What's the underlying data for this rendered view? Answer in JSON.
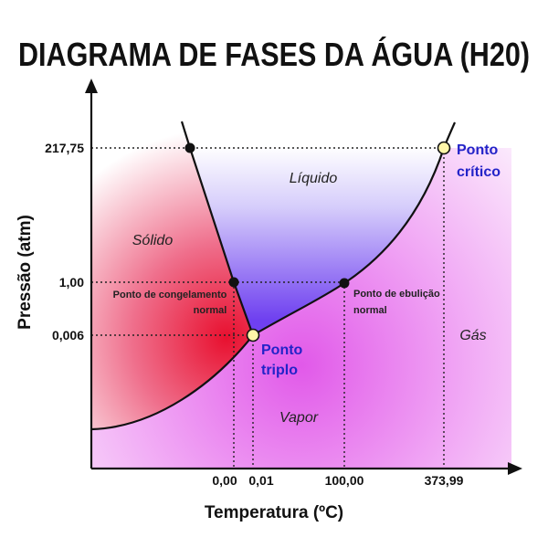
{
  "title": "DIAGRAMA DE FASES DA ÁGUA (H20)",
  "axes": {
    "y_label": "Pressão (atm)",
    "x_label": "Temperatura (ºC)",
    "y_ticks": [
      "217,75",
      "1,00",
      "0,006"
    ],
    "x_ticks": [
      "0,00",
      "0,01",
      "100,00",
      "373,99"
    ]
  },
  "regions": {
    "solid": "Sólido",
    "liquid": "Líquido",
    "vapor": "Vapor",
    "gas": "Gás"
  },
  "points": {
    "freezing_line1": "Ponto de congelamento",
    "freezing_line2": "normal",
    "boiling_line1": "Ponto de ebulição",
    "boiling_line2": "normal",
    "triple_line1": "Ponto",
    "triple_line2": "triplo",
    "critical_line1": "Ponto",
    "critical_line2": "crítico"
  },
  "colors": {
    "solid_red": "#e8102f",
    "liquid_blue": "#7a4cf2",
    "vapor_magenta": "#e05ee8",
    "gas_pink": "#f6d8f8",
    "point_label_blue": "#2323c8",
    "special_point_fill": "#fff6a8"
  }
}
